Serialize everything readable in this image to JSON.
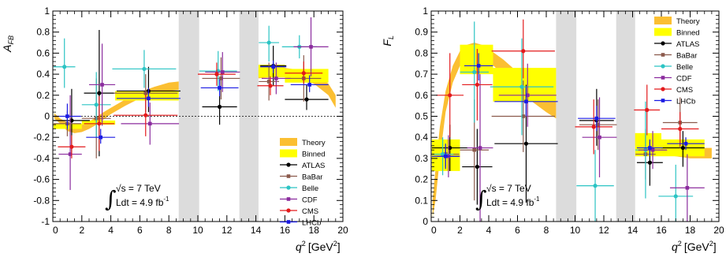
{
  "chart_data": [
    {
      "type": "scatter",
      "id": "afb",
      "ylabel": "A",
      "ylabel_sub": "FB",
      "xlabel": "q",
      "xlabel_sup": "2",
      "xlabel_unit_open": "[GeV",
      "xlabel_unit_sup": "2",
      "xlabel_unit_close": "]",
      "xlim": [
        0,
        20
      ],
      "ylim": [
        -1,
        1
      ],
      "xticks": [
        0,
        2,
        4,
        6,
        8,
        10,
        12,
        14,
        16,
        18,
        20
      ],
      "yticks": [
        -1,
        -0.8,
        -0.6,
        -0.4,
        -0.2,
        0,
        0.2,
        0.4,
        0.6,
        0.8,
        1
      ],
      "vetoed_regions": [
        [
          8.68,
          10.09
        ],
        [
          12.86,
          14.18
        ]
      ],
      "theory_band": {
        "x": [
          0.1,
          0.5,
          1,
          1.5,
          2,
          2.5,
          3,
          3.5,
          4,
          5,
          6,
          7,
          8,
          8.68,
          14.18,
          15,
          16,
          17,
          18,
          19,
          19.5
        ],
        "lo": [
          -0.02,
          -0.07,
          -0.14,
          -0.16,
          -0.15,
          -0.12,
          -0.08,
          -0.03,
          0.02,
          0.1,
          0.17,
          0.21,
          0.24,
          0.25,
          0.36,
          0.37,
          0.37,
          0.35,
          0.31,
          0.2,
          0.08
        ],
        "hi": [
          0.03,
          -0.02,
          -0.06,
          -0.09,
          -0.08,
          -0.05,
          -0.01,
          0.04,
          0.08,
          0.16,
          0.23,
          0.28,
          0.32,
          0.33,
          0.44,
          0.46,
          0.46,
          0.44,
          0.41,
          0.31,
          0.2
        ]
      },
      "binned": [
        {
          "x0": 0.05,
          "x1": 2,
          "lo": -0.12,
          "hi": -0.07
        },
        {
          "x0": 2,
          "x1": 4.3,
          "lo": -0.08,
          "hi": -0.04
        },
        {
          "x0": 4.3,
          "x1": 8.68,
          "lo": 0.15,
          "hi": 0.24
        },
        {
          "x0": 14.18,
          "x1": 16,
          "lo": 0.37,
          "hi": 0.49
        },
        {
          "x0": 16,
          "x1": 19,
          "lo": 0.32,
          "hi": 0.45
        }
      ],
      "series": [
        {
          "name": "ATLAS",
          "color": "#000000",
          "points": [
            {
              "x": 1.3,
              "y": -0.04,
              "xe": 1.25,
              "ylo": 0.3,
              "yhi": 0.3
            },
            {
              "x": 3.2,
              "y": 0.22,
              "xe": 1.05,
              "ylo": 0.6,
              "yhi": 0.6
            },
            {
              "x": 6.6,
              "y": 0.24,
              "xe": 2.2,
              "ylo": 0.2,
              "yhi": 0.23
            },
            {
              "x": 11.5,
              "y": 0.09,
              "xe": 1.2,
              "ylo": 0.17,
              "yhi": 0.2
            },
            {
              "x": 15.2,
              "y": 0.48,
              "xe": 0.9,
              "ylo": 0.19,
              "yhi": 0.19
            },
            {
              "x": 17.5,
              "y": 0.16,
              "xe": 1.5,
              "ylo": 0.1,
              "yhi": 0.14
            }
          ]
        },
        {
          "name": "BaBar",
          "color": "#8B5A4C",
          "points": [
            {
              "x": 1.0,
              "y": -0.07,
              "xe": 0.95,
              "ylo": 0.12,
              "yhi": 0.12
            },
            {
              "x": 3.0,
              "y": -0.02,
              "xe": 1.0,
              "ylo": 0.38,
              "yhi": 0.38
            },
            {
              "x": 6.4,
              "y": 0.22,
              "xe": 2.2,
              "ylo": 0.18,
              "yhi": 0.18
            },
            {
              "x": 11.6,
              "y": 0.36,
              "xe": 1.3,
              "ylo": 0.2,
              "yhi": 0.2
            },
            {
              "x": 14.9,
              "y": 0.33,
              "xe": 0.7,
              "ylo": 0.18,
              "yhi": 0.18
            },
            {
              "x": 17.3,
              "y": 0.36,
              "xe": 1.2,
              "ylo": 0.22,
              "yhi": 0.22
            }
          ]
        },
        {
          "name": "Belle",
          "color": "#2CC4C4",
          "points": [
            {
              "x": 0.8,
              "y": 0.47,
              "xe": 0.75,
              "ylo": 0.2,
              "yhi": 0.27
            },
            {
              "x": 3.0,
              "y": 0.11,
              "xe": 1.0,
              "ylo": 0.31,
              "yhi": 0.31
            },
            {
              "x": 6.3,
              "y": 0.45,
              "xe": 2.2,
              "ylo": 0.18,
              "yhi": 0.18
            },
            {
              "x": 11.4,
              "y": 0.43,
              "xe": 1.3,
              "ylo": 0.19,
              "yhi": 0.19
            },
            {
              "x": 14.9,
              "y": 0.7,
              "xe": 0.7,
              "ylo": 0.18,
              "yhi": 0.16
            },
            {
              "x": 17.0,
              "y": 0.66,
              "xe": 1.2,
              "ylo": 0.11,
              "yhi": 0.11
            }
          ]
        },
        {
          "name": "CDF",
          "color": "#8B2C9E",
          "points": [
            {
              "x": 1.2,
              "y": -0.36,
              "xe": 0.8,
              "ylo": 0.34,
              "yhi": 0.56
            },
            {
              "x": 3.4,
              "y": 0.3,
              "xe": 0.9,
              "ylo": 0.39,
              "yhi": 0.39
            },
            {
              "x": 6.7,
              "y": -0.07,
              "xe": 2.0,
              "ylo": 0.2,
              "yhi": 0.2
            },
            {
              "x": 11.7,
              "y": 0.42,
              "xe": 1.2,
              "ylo": 0.19,
              "yhi": 0.19
            },
            {
              "x": 15.4,
              "y": 0.36,
              "xe": 1.0,
              "ylo": 0.15,
              "yhi": 0.15
            },
            {
              "x": 17.8,
              "y": 0.66,
              "xe": 1.2,
              "ylo": 0.28,
              "yhi": 0.28
            }
          ]
        },
        {
          "name": "CMS",
          "color": "#E31A1C",
          "points": [
            {
              "x": 1.3,
              "y": -0.29,
              "xe": 0.95,
              "ylo": 0.11,
              "yhi": 0.11
            },
            {
              "x": 3.2,
              "y": -0.07,
              "xe": 1.05,
              "ylo": 0.26,
              "yhi": 0.26
            },
            {
              "x": 6.4,
              "y": 0.01,
              "xe": 2.2,
              "ylo": 0.2,
              "yhi": 0.2
            },
            {
              "x": 11.3,
              "y": 0.4,
              "xe": 1.3,
              "ylo": 0.11,
              "yhi": 0.11
            },
            {
              "x": 15.0,
              "y": 0.29,
              "xe": 0.9,
              "ylo": 0.09,
              "yhi": 0.09
            },
            {
              "x": 17.3,
              "y": 0.41,
              "xe": 1.3,
              "ylo": 0.1,
              "yhi": 0.11
            }
          ]
        },
        {
          "name": "LHCb",
          "color": "#1A1AE3",
          "points": [
            {
              "x": 1.0,
              "y": 0.0,
              "xe": 0.95,
              "ylo": 0.12,
              "yhi": 0.12
            },
            {
              "x": 3.3,
              "y": -0.2,
              "xe": 1.0,
              "ylo": 0.06,
              "yhi": 0.08
            },
            {
              "x": 6.6,
              "y": 0.17,
              "xe": 2.2,
              "ylo": 0.08,
              "yhi": 0.1
            },
            {
              "x": 11.5,
              "y": 0.27,
              "xe": 1.3,
              "ylo": 0.08,
              "yhi": 0.08
            },
            {
              "x": 15.2,
              "y": 0.47,
              "xe": 0.9,
              "ylo": 0.06,
              "yhi": 0.06
            },
            {
              "x": 17.7,
              "y": 0.3,
              "xe": 1.3,
              "ylo": 0.07,
              "yhi": 0.09
            }
          ]
        }
      ],
      "legend": {
        "theory": "Theory",
        "binned": "Binned",
        "placement": "bottom-right"
      },
      "annotation": {
        "sqrt_s": "√s = 7 TeV",
        "lumi": "Ldt = 4.9 fb",
        "lumi_sup": "-1",
        "integral": "∫"
      }
    },
    {
      "type": "scatter",
      "id": "fl",
      "ylabel": "F",
      "ylabel_sub": "L",
      "xlabel": "q",
      "xlabel_sup": "2",
      "xlabel_unit_open": "[GeV",
      "xlabel_unit_sup": "2",
      "xlabel_unit_close": "]",
      "xlim": [
        0,
        20
      ],
      "ylim": [
        0,
        1
      ],
      "xticks": [
        0,
        2,
        4,
        6,
        8,
        10,
        12,
        14,
        16,
        18,
        20
      ],
      "yticks": [
        0,
        0.1,
        0.2,
        0.3,
        0.4,
        0.5,
        0.6,
        0.7,
        0.8,
        0.9,
        1
      ],
      "vetoed_regions": [
        [
          8.68,
          10.09
        ],
        [
          12.86,
          14.18
        ]
      ],
      "theory_band": {
        "x": [
          0.1,
          0.3,
          0.6,
          1,
          1.5,
          2,
          2.5,
          3,
          3.5,
          4,
          5,
          6,
          7,
          8,
          8.68,
          14.18,
          15,
          16,
          17,
          18,
          19,
          19.5
        ],
        "lo": [
          0.02,
          0.1,
          0.3,
          0.52,
          0.66,
          0.74,
          0.78,
          0.79,
          0.78,
          0.76,
          0.7,
          0.63,
          0.57,
          0.52,
          0.49,
          0.36,
          0.34,
          0.32,
          0.31,
          0.3,
          0.3,
          0.3
        ],
        "hi": [
          0.1,
          0.25,
          0.45,
          0.62,
          0.74,
          0.81,
          0.84,
          0.85,
          0.84,
          0.82,
          0.77,
          0.71,
          0.65,
          0.6,
          0.57,
          0.42,
          0.4,
          0.38,
          0.36,
          0.35,
          0.35,
          0.35
        ]
      },
      "binned": [
        {
          "x0": 0.05,
          "x1": 2,
          "lo": 0.24,
          "hi": 0.39
        },
        {
          "x0": 2,
          "x1": 4.3,
          "lo": 0.7,
          "hi": 0.84
        },
        {
          "x0": 4.3,
          "x1": 8.68,
          "lo": 0.57,
          "hi": 0.73
        },
        {
          "x0": 14.18,
          "x1": 16,
          "lo": 0.31,
          "hi": 0.42
        },
        {
          "x0": 16,
          "x1": 19,
          "lo": 0.31,
          "hi": 0.39
        }
      ],
      "series": [
        {
          "name": "ATLAS",
          "color": "#000000",
          "points": [
            {
              "x": 1.3,
              "y": 0.35,
              "xe": 1.25,
              "ylo": 0.11,
              "yhi": 0.11
            },
            {
              "x": 3.2,
              "y": 0.26,
              "xe": 1.05,
              "ylo": 0.18,
              "yhi": 0.18
            },
            {
              "x": 6.6,
              "y": 0.37,
              "xe": 2.2,
              "ylo": 0.28,
              "yhi": 0.28
            },
            {
              "x": 11.5,
              "y": 0.48,
              "xe": 1.2,
              "ylo": 0.12,
              "yhi": 0.15
            },
            {
              "x": 15.2,
              "y": 0.28,
              "xe": 0.9,
              "ylo": 0.11,
              "yhi": 0.1
            },
            {
              "x": 17.5,
              "y": 0.35,
              "xe": 1.5,
              "ylo": 0.09,
              "yhi": 0.08
            }
          ]
        },
        {
          "name": "BaBar",
          "color": "#8B5A4C",
          "points": [
            {
              "x": 1.0,
              "y": 0.32,
              "xe": 0.95,
              "ylo": 0.06,
              "yhi": 0.04
            },
            {
              "x": 3.0,
              "y": 0.34,
              "xe": 1.0,
              "ylo": 0.24,
              "yhi": 0.24
            },
            {
              "x": 6.4,
              "y": 0.5,
              "xe": 2.2,
              "ylo": 0.17,
              "yhi": 0.17
            },
            {
              "x": 11.6,
              "y": 0.46,
              "xe": 1.3,
              "ylo": 0.12,
              "yhi": 0.12
            },
            {
              "x": 14.9,
              "y": 0.32,
              "xe": 0.7,
              "ylo": 0.12,
              "yhi": 0.12
            },
            {
              "x": 17.3,
              "y": 0.47,
              "xe": 1.2,
              "ylo": 0.12,
              "yhi": 0.12
            }
          ]
        },
        {
          "name": "Belle",
          "color": "#2CC4C4",
          "points": [
            {
              "x": 0.8,
              "y": 0.32,
              "xe": 0.75,
              "ylo": 0.1,
              "yhi": 0.08
            },
            {
              "x": 3.0,
              "y": 0.71,
              "xe": 1.0,
              "ylo": 0.24,
              "yhi": 0.24
            },
            {
              "x": 6.3,
              "y": 0.64,
              "xe": 2.2,
              "ylo": 0.23,
              "yhi": 0.23
            },
            {
              "x": 11.4,
              "y": 0.17,
              "xe": 1.3,
              "ylo": 0.17,
              "yhi": 0.17
            },
            {
              "x": 14.9,
              "y": 0.34,
              "xe": 0.7,
              "ylo": 0.23,
              "yhi": 0.23
            },
            {
              "x": 17.0,
              "y": 0.12,
              "xe": 1.2,
              "ylo": 0.15,
              "yhi": 0.15
            }
          ]
        },
        {
          "name": "CDF",
          "color": "#8B2C9E",
          "points": [
            {
              "x": 1.2,
              "y": 0.31,
              "xe": 0.8,
              "ylo": 0.1,
              "yhi": 0.1
            },
            {
              "x": 3.4,
              "y": 0.35,
              "xe": 0.9,
              "ylo": 0.35,
              "yhi": 0.35
            },
            {
              "x": 6.7,
              "y": 0.6,
              "xe": 2.0,
              "ylo": 0.15,
              "yhi": 0.15
            },
            {
              "x": 11.7,
              "y": 0.4,
              "xe": 1.2,
              "ylo": 0.19,
              "yhi": 0.19
            },
            {
              "x": 15.4,
              "y": 0.34,
              "xe": 1.0,
              "ylo": 0.09,
              "yhi": 0.09
            },
            {
              "x": 17.8,
              "y": 0.16,
              "xe": 1.2,
              "ylo": 0.16,
              "yhi": 0.16
            }
          ]
        },
        {
          "name": "CMS",
          "color": "#E31A1C",
          "points": [
            {
              "x": 1.3,
              "y": 0.6,
              "xe": 0.95,
              "ylo": 0.2,
              "yhi": 0.2
            },
            {
              "x": 3.2,
              "y": 0.65,
              "xe": 1.05,
              "ylo": 0.17,
              "yhi": 0.17
            },
            {
              "x": 6.4,
              "y": 0.81,
              "xe": 2.2,
              "ylo": 0.13,
              "yhi": 0.15
            },
            {
              "x": 11.3,
              "y": 0.45,
              "xe": 1.3,
              "ylo": 0.13,
              "yhi": 0.13
            },
            {
              "x": 15.0,
              "y": 0.53,
              "xe": 0.9,
              "ylo": 0.12,
              "yhi": 0.12
            },
            {
              "x": 17.3,
              "y": 0.44,
              "xe": 1.3,
              "ylo": 0.08,
              "yhi": 0.08
            }
          ]
        },
        {
          "name": "LHCb",
          "color": "#1A1AE3",
          "points": [
            {
              "x": 1.0,
              "y": 0.31,
              "xe": 0.95,
              "ylo": 0.06,
              "yhi": 0.06
            },
            {
              "x": 3.3,
              "y": 0.74,
              "xe": 1.0,
              "ylo": 0.07,
              "yhi": 0.06
            },
            {
              "x": 6.6,
              "y": 0.57,
              "xe": 2.2,
              "ylo": 0.07,
              "yhi": 0.07
            },
            {
              "x": 11.5,
              "y": 0.49,
              "xe": 1.3,
              "ylo": 0.06,
              "yhi": 0.06
            },
            {
              "x": 15.2,
              "y": 0.35,
              "xe": 0.9,
              "ylo": 0.04,
              "yhi": 0.04
            },
            {
              "x": 17.7,
              "y": 0.37,
              "xe": 1.3,
              "ylo": 0.03,
              "yhi": 0.03
            }
          ]
        }
      ],
      "legend": {
        "theory": "Theory",
        "binned": "Binned",
        "placement": "top-right"
      },
      "annotation": {
        "sqrt_s": "√s = 7 TeV",
        "lumi": "Ldt = 4.9 fb",
        "lumi_sup": "-1",
        "integral": "∫"
      }
    }
  ],
  "colors": {
    "theory": "#FBBF32",
    "binned": "#FFFF00",
    "veto": "#DCDCDC"
  }
}
